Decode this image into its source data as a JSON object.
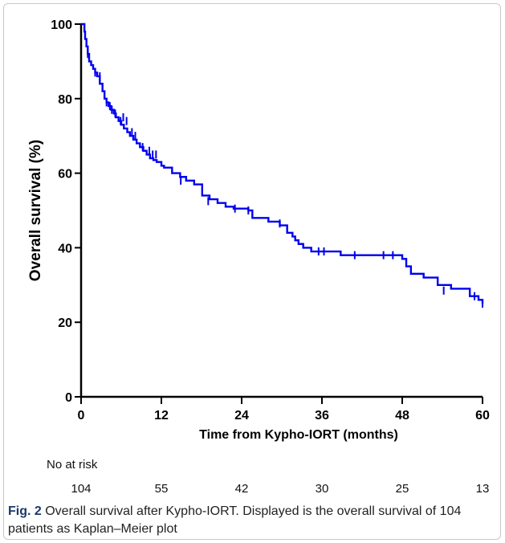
{
  "chart_data": {
    "type": "line",
    "subtype": "kaplan-meier",
    "xlabel": "Time from Kypho-IORT (months)",
    "ylabel": "Overall survival (%)",
    "xlim": [
      0,
      60
    ],
    "ylim": [
      0,
      100
    ],
    "xticks": [
      0,
      12,
      24,
      36,
      48,
      60
    ],
    "yticks": [
      0,
      20,
      40,
      60,
      80,
      100
    ],
    "line_color": "#0000ee",
    "grid": false,
    "series": [
      {
        "step_x": [
          0,
          0.5,
          0.6,
          0.8,
          1.0,
          1.2,
          1.5,
          1.8,
          2.1,
          2.4,
          2.8,
          3.2,
          3.5,
          3.8,
          4.1,
          4.5,
          4.9,
          5.2,
          5.6,
          6.0,
          6.4,
          6.9,
          7.3,
          7.8,
          8.3,
          8.8,
          9.3,
          9.8,
          10.3,
          10.8,
          11.3,
          12.0,
          12.4,
          13.6,
          14.8,
          15.7,
          16.9,
          18.1,
          19.2,
          20.4,
          21.6,
          22.8,
          25.0,
          25.6,
          28.0,
          29.7,
          30.8,
          31.6,
          32.0,
          32.5,
          33.2,
          34.4,
          36.5,
          38.8,
          42.3,
          48.0,
          48.6,
          49.3,
          51.2,
          53.3,
          55.3,
          58.1,
          59.4,
          60.0
        ],
        "step_y": [
          100,
          98,
          96,
          94,
          92,
          90,
          89,
          88,
          87,
          86,
          84,
          82,
          80,
          79,
          78,
          77,
          76,
          75,
          74,
          73,
          72,
          71,
          70,
          69,
          68,
          67,
          66,
          65,
          64,
          63.5,
          63,
          62,
          61.5,
          60,
          59,
          58,
          57,
          54,
          53,
          52,
          51,
          50.5,
          50,
          48,
          47,
          46,
          44,
          43,
          42,
          41,
          40,
          39,
          39,
          38,
          38,
          37,
          35,
          33,
          32,
          30,
          29,
          27,
          26,
          25
        ],
        "censor_x": [
          1.0,
          2.1,
          2.8,
          3.8,
          4.3,
          4.6,
          5.1,
          5.9,
          6.3,
          6.8,
          7.6,
          8.1,
          9.2,
          10.2,
          10.7,
          11.2,
          14.9,
          19.0,
          23.0,
          25.0,
          29.7,
          35.5,
          36.3,
          40.9,
          45.2,
          46.6,
          54.2,
          58.8,
          60.0
        ],
        "censor_y": [
          92,
          87,
          86,
          79,
          78,
          77,
          76,
          74,
          75,
          74,
          71,
          70,
          67,
          66,
          65,
          65,
          58,
          52.5,
          50.5,
          50,
          46.5,
          39,
          39,
          38,
          38,
          38,
          28.5,
          27,
          25
        ]
      }
    ]
  },
  "risk_table": {
    "title": "No at risk",
    "values": [
      "104",
      "55",
      "42",
      "30",
      "25",
      "13"
    ]
  },
  "caption": {
    "label": "Fig. 2",
    "text": "Overall survival after Kypho-IORT. Displayed is the overall survival of 104 patients as Kaplan–Meier plot"
  }
}
